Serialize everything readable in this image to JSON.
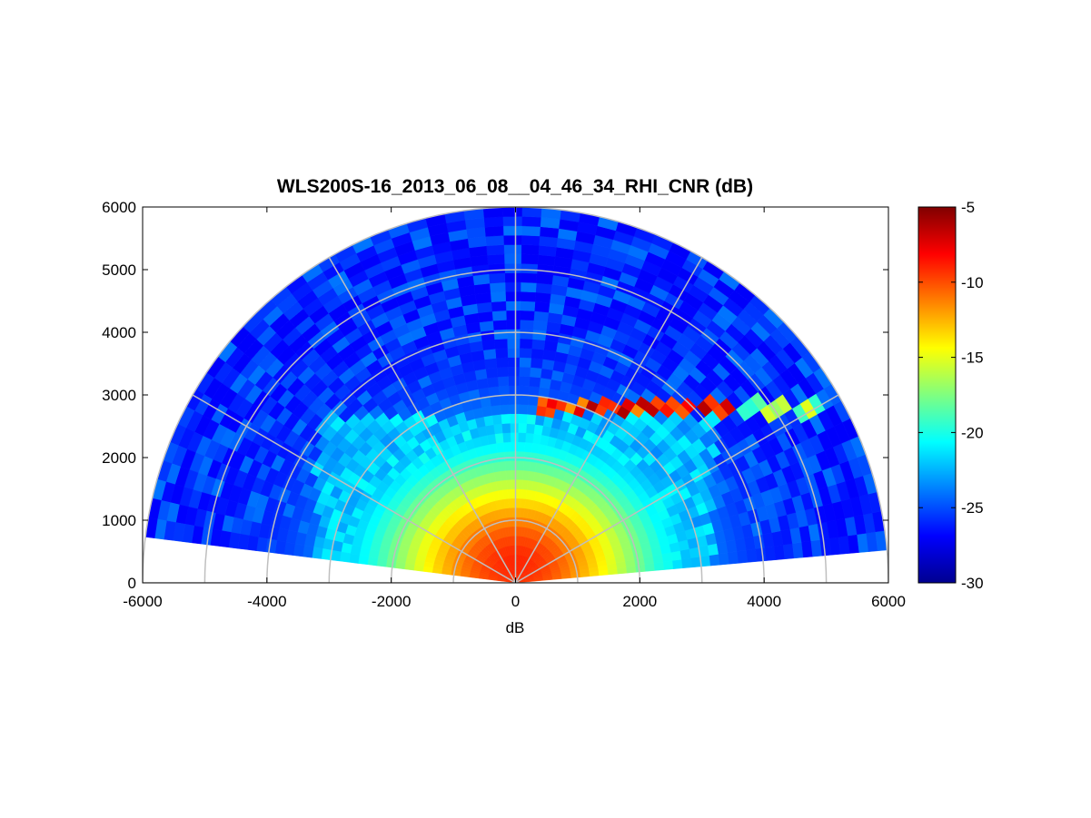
{
  "chart_data": {
    "type": "heatmap",
    "subtype": "polar-rhi-sector",
    "title": "WLS200S-16_2013_06_08__04_46_34_RHI_CNR (dB)",
    "xlabel": "dB",
    "ylabel": "",
    "xlim": [
      -6000,
      6000
    ],
    "ylim": [
      0,
      6000
    ],
    "x_ticks": [
      -6000,
      -4000,
      -2000,
      0,
      2000,
      4000,
      6000
    ],
    "y_ticks": [
      0,
      1000,
      2000,
      3000,
      4000,
      5000,
      6000
    ],
    "grid": true,
    "range_rings": [
      1000,
      2000,
      3000,
      4000,
      5000,
      6000
    ],
    "spokes_deg": [
      30,
      60,
      90,
      120,
      150
    ],
    "scan_angle_range_deg": [
      5,
      173
    ],
    "colormap": "jet",
    "colorbar": {
      "min": -30,
      "max": -5,
      "ticks": [
        -5,
        -10,
        -15,
        -20,
        -25,
        -30
      ],
      "placement": "right"
    },
    "cnr_features": {
      "background_dB": -26,
      "near_field_peak_dB": -9,
      "layer_top_m": 2800,
      "layer_top_max_dB": -6,
      "aerosol_layer_dB": -14
    }
  }
}
